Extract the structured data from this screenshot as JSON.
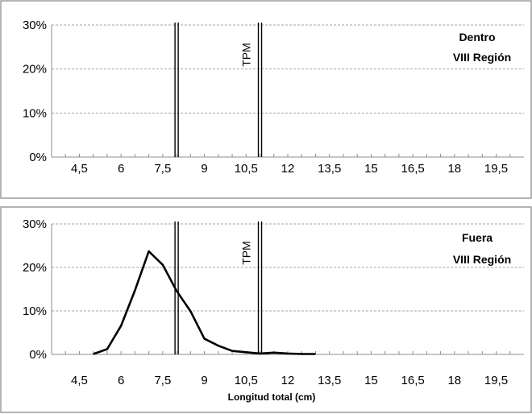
{
  "chart_data": [
    {
      "type": "line",
      "annotation": [
        "Dentro",
        "VIII Región"
      ],
      "tpm_label": "TPM",
      "x_tick_labels": [
        "4,5",
        "6",
        "7,5",
        "9",
        "10,5",
        "12",
        "13,5",
        "15",
        "16,5",
        "18",
        "19,5"
      ],
      "y_tick_labels": [
        "0%",
        "10%",
        "20%",
        "30%"
      ],
      "xlim": [
        3.5,
        20.5
      ],
      "ylim": [
        0,
        30
      ],
      "reference_lines_x": [
        8,
        11
      ],
      "grid": "horizontal dashed",
      "xlabel": "",
      "series": [
        {
          "x": [],
          "y": []
        }
      ]
    },
    {
      "type": "line",
      "annotation": [
        "Fuera",
        "VIII Región"
      ],
      "tpm_label": "TPM",
      "x_tick_labels": [
        "4,5",
        "6",
        "7,5",
        "9",
        "10,5",
        "12",
        "13,5",
        "15",
        "16,5",
        "18",
        "19,5"
      ],
      "y_tick_labels": [
        "0%",
        "10%",
        "20%",
        "30%"
      ],
      "xlim": [
        3.5,
        20.5
      ],
      "ylim": [
        0,
        30
      ],
      "reference_lines_x": [
        8,
        11
      ],
      "grid": "horizontal dashed",
      "xlabel": "Longitud total (cm)",
      "series": [
        {
          "x": [
            5.0,
            5.5,
            6.0,
            6.5,
            7.0,
            7.5,
            8.0,
            8.5,
            9.0,
            9.5,
            10.0,
            10.5,
            11.0,
            11.5,
            12.0,
            12.5,
            13.0
          ],
          "y": [
            0.1,
            1.2,
            6.6,
            14.7,
            23.7,
            20.6,
            14.6,
            9.9,
            3.6,
            2.0,
            0.8,
            0.5,
            0.2,
            0.4,
            0.2,
            0.1,
            0.1
          ]
        }
      ]
    }
  ]
}
